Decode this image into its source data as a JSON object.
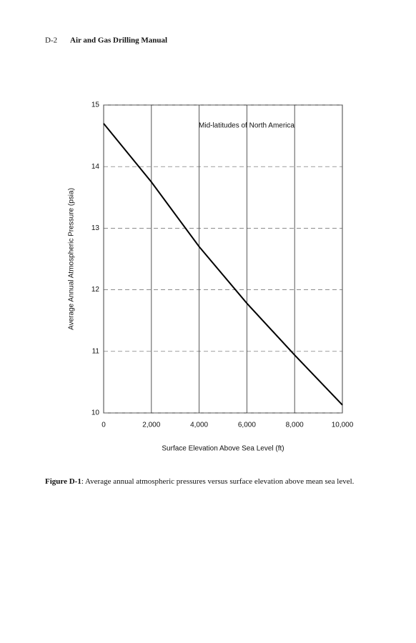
{
  "header": {
    "page": "D-2",
    "title": "Air and Gas Drilling Manual"
  },
  "chart_data": {
    "type": "line",
    "annotation": "Mid-latitudes of North America",
    "x_label": "Surface Elevation Above Sea Level (ft)",
    "y_label": "Average Annual Atmospheric Pressure (psia)",
    "x": [
      0,
      2000,
      4000,
      6000,
      8000,
      10000
    ],
    "series": [
      {
        "name": "Average annual atmospheric pressure",
        "color": "#000000",
        "values": [
          14.7,
          13.75,
          12.7,
          11.78,
          10.94,
          10.13
        ]
      }
    ],
    "xlim": [
      0,
      10000
    ],
    "xticks": [
      0,
      {
        "value": 2000,
        "label": "2,000"
      },
      {
        "value": 4000,
        "label": "4,000"
      },
      {
        "value": 6000,
        "label": "6,000"
      },
      {
        "value": 8000,
        "label": "8,000"
      },
      {
        "value": 10000,
        "label": "10,000"
      }
    ],
    "ylim": [
      10,
      15
    ],
    "yticks": [
      10,
      11,
      12,
      13,
      14,
      15
    ],
    "grid": true
  },
  "caption": {
    "label": "Figure D-1",
    "text": ": Average annual atmospheric pressures versus surface elevation above mean sea level."
  }
}
